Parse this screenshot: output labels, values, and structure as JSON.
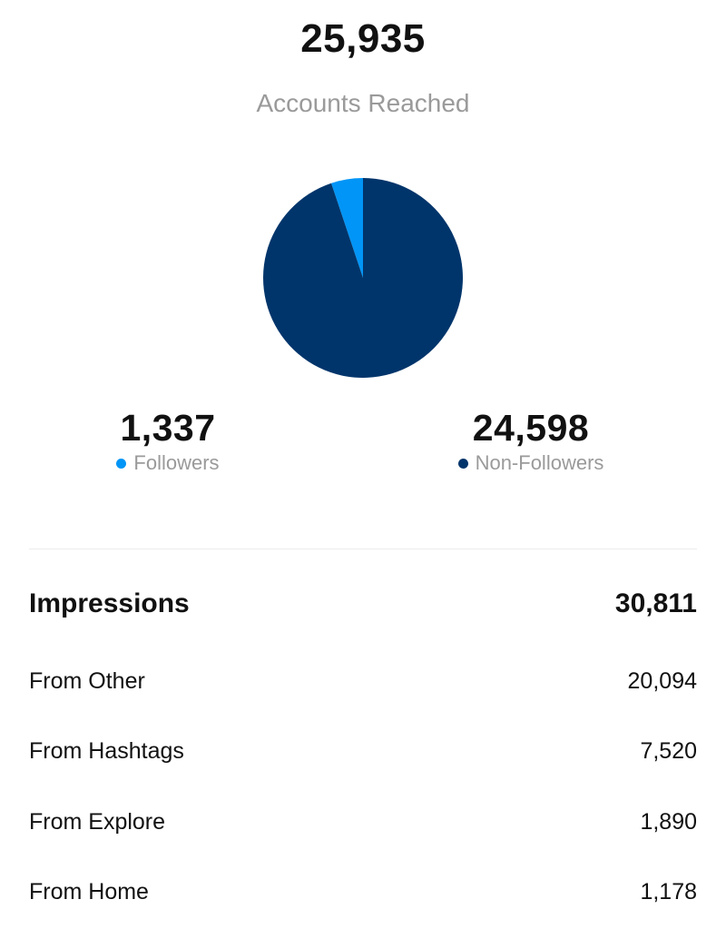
{
  "reach": {
    "total": "25,935",
    "label": "Accounts Reached"
  },
  "chart_data": {
    "type": "pie",
    "categories": [
      "Followers",
      "Non-Followers"
    ],
    "values": [
      1337,
      24598
    ],
    "colors": [
      "#0095f6",
      "#00356b"
    ]
  },
  "stats": {
    "followers": {
      "value": "1,337",
      "label": "Followers"
    },
    "non_followers": {
      "value": "24,598",
      "label": "Non-Followers"
    }
  },
  "impressions": {
    "label": "Impressions",
    "total": "30,811",
    "rows": [
      {
        "label": "From Other",
        "value": "20,094"
      },
      {
        "label": "From Hashtags",
        "value": "7,520"
      },
      {
        "label": "From Explore",
        "value": "1,890"
      },
      {
        "label": "From Home",
        "value": "1,178"
      }
    ]
  },
  "colors": {
    "followers": "#0095f6",
    "non_followers": "#00356b"
  }
}
